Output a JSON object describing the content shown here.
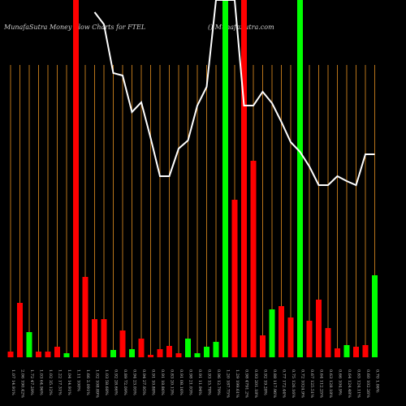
{
  "chart_data": {
    "type": "bar",
    "title": "MunafaSutra  Money  Flow  Charts for FTEL",
    "subtitle": "() MunafaSutra.com",
    "categories": [
      "1.07 14.91%",
      "2.06 190.42%",
      "1.72 47.29%",
      "1.03 64.96%",
      "1.02 35.12%",
      "1.22 17.31%",
      "1.04 14.91%",
      "1.11 100%",
      "1.66 2.091%",
      "1.02 108.89%",
      "1.03 58.68%",
      "0.92 28.66%",
      "0.89 72.09%",
      "0.94 23.05%",
      "0.94 27.95%",
      "0.91 10.88%",
      "0.91 18.86%",
      "0.83 20.13%",
      "0.91 08.16%",
      "0.98 21.03%",
      "0.91 11.94%",
      "0.93 15.78%",
      "0.96 12.79%",
      "1.20 187.75%",
      "1.29 199.61%",
      "0.98 4791.2%",
      "0.93 201.18%",
      "0.92 19.28%",
      "0.88 117.96%",
      "0.77 172.44%",
      "0.75 126.16%",
      "0.72 1024.9%",
      "0.67 125.51%",
      "0.64 112.25%",
      "0.63 128.18%",
      "0.66 104.9%",
      "0.64 124.48%",
      "0.65 124.11%",
      "0.60 102.26%",
      "0.70 1.06%"
    ],
    "bar_colors": [
      "#ff0000",
      "#ff0000",
      "#00ff00",
      "#ff0000",
      "#ff0000",
      "#ff0000",
      "#00ff00",
      "#ff0000",
      "#ff0000",
      "#ff0000",
      "#ff0000",
      "#00ff00",
      "#ff0000",
      "#00ff00",
      "#ff0000",
      "#ff0000",
      "#ff0000",
      "#ff0000",
      "#ff0000",
      "#00ff00",
      "#00ff00",
      "#00ff00",
      "#00ff00",
      "#00ff00",
      "#ff0000",
      "#ff0000",
      "#ff0000",
      "#ff0000",
      "#00ff00",
      "#ff0000",
      "#ff0000",
      "#00ff00",
      "#ff0000",
      "#ff0000",
      "#ff0000",
      "#ff0000",
      "#00ff00",
      "#ff0000",
      "#ff0000",
      "#00ff00"
    ],
    "values": [
      7,
      67,
      31,
      7,
      7,
      13,
      5,
      440,
      99,
      47,
      47,
      9,
      33,
      10,
      23,
      3,
      10,
      14,
      5,
      23,
      5,
      13,
      19,
      440,
      194,
      440,
      242,
      27,
      59,
      63,
      49,
      440,
      45,
      71,
      36,
      11,
      15,
      13,
      15,
      101
    ],
    "line": {
      "color": "#ffffff",
      "values": [
        null,
        null,
        null,
        null,
        null,
        null,
        null,
        null,
        null,
        425,
        410,
        350,
        347,
        302,
        314,
        270,
        223,
        223,
        257,
        267,
        310,
        333,
        440,
        440,
        440,
        310,
        310,
        327,
        313,
        290,
        265,
        253,
        235,
        212,
        212,
        223,
        217,
        212,
        250,
        250
      ]
    },
    "ylim": [
      0,
      440
    ],
    "grid_color": "#b8741a"
  }
}
